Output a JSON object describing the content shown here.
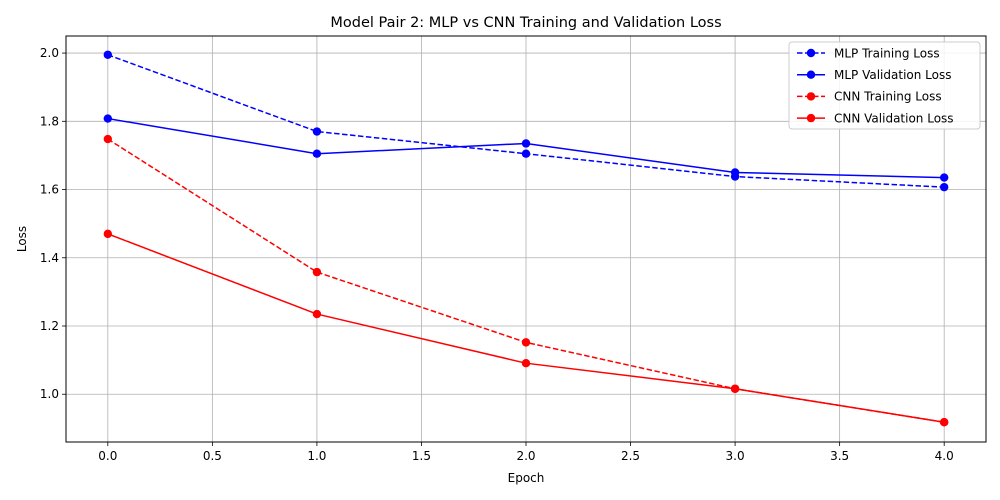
{
  "chart_data": {
    "type": "line",
    "title": "Model Pair 2: MLP vs CNN Training and Validation Loss",
    "xlabel": "Epoch",
    "ylabel": "Loss",
    "xlim": [
      -0.2,
      4.2
    ],
    "ylim": [
      0.86,
      2.05
    ],
    "xticks": [
      0.0,
      0.5,
      1.0,
      1.5,
      2.0,
      2.5,
      3.0,
      3.5,
      4.0
    ],
    "xtick_labels": [
      "0.0",
      "0.5",
      "1.0",
      "1.5",
      "2.0",
      "2.5",
      "3.0",
      "3.5",
      "4.0"
    ],
    "yticks": [
      1.0,
      1.2,
      1.4,
      1.6,
      1.8,
      2.0
    ],
    "ytick_labels": [
      "1.0",
      "1.2",
      "1.4",
      "1.6",
      "1.8",
      "2.0"
    ],
    "grid": true,
    "legend_position": "top-right",
    "x": [
      0,
      1,
      2,
      3,
      4
    ],
    "series": [
      {
        "name": "MLP Training Loss",
        "values": [
          1.995,
          1.77,
          1.705,
          1.638,
          1.607
        ],
        "color": "#0000ff",
        "linestyle": "dashed",
        "marker": "circle"
      },
      {
        "name": "MLP Validation Loss",
        "values": [
          1.808,
          1.705,
          1.735,
          1.65,
          1.635
        ],
        "color": "#0000ff",
        "linestyle": "solid",
        "marker": "circle"
      },
      {
        "name": "CNN Training Loss",
        "values": [
          1.748,
          1.358,
          1.152,
          1.016,
          0.918
        ],
        "color": "#ff0000",
        "linestyle": "dashed",
        "marker": "circle"
      },
      {
        "name": "CNN Validation Loss",
        "values": [
          1.47,
          1.235,
          1.091,
          1.016,
          0.918
        ],
        "color": "#ff0000",
        "linestyle": "solid",
        "marker": "circle"
      }
    ]
  }
}
